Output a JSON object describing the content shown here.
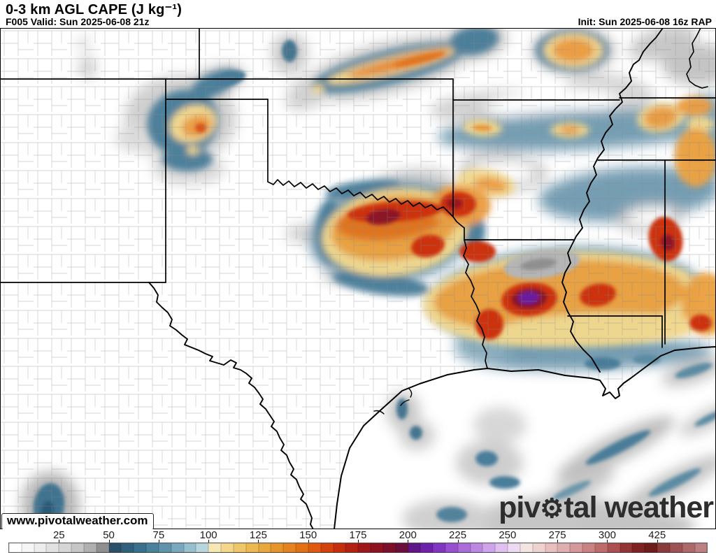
{
  "header": {
    "title": "0-3 km AGL CAPE (J kg⁻¹)",
    "valid": "F005 Valid: Sun 2025-06-08 21z",
    "init": "Init: Sun 2025-06-08 16z RAP"
  },
  "map": {
    "watermark": "www.pivotalweather.com",
    "logo_pre": "piv",
    "logo_gear": "⚙",
    "logo_post": "tal weather",
    "field": "0-3 km AGL CAPE",
    "units": "J kg⁻¹",
    "model": "RAP",
    "forecast_hour": "F005"
  },
  "colorbar": {
    "unit_label": "J kg⁻¹",
    "ticks": [
      {
        "label": "25",
        "pos": 7.143
      },
      {
        "label": "50",
        "pos": 14.286
      },
      {
        "label": "75",
        "pos": 21.429
      },
      {
        "label": "100",
        "pos": 28.571
      },
      {
        "label": "125",
        "pos": 35.714
      },
      {
        "label": "150",
        "pos": 42.857
      },
      {
        "label": "175",
        "pos": 50.0
      },
      {
        "label": "200",
        "pos": 57.143
      },
      {
        "label": "225",
        "pos": 64.286
      },
      {
        "label": "250",
        "pos": 71.429
      },
      {
        "label": "275",
        "pos": 78.571
      },
      {
        "label": "300",
        "pos": 85.714
      },
      {
        "label": "425",
        "pos": 92.857
      }
    ],
    "colors": [
      "#ffffff",
      "#f6f6f6",
      "#ededed",
      "#e2e2e2",
      "#d6d6d6",
      "#c6c6c6",
      "#b0b0b0",
      "#8f8f8f",
      "#2b5168",
      "#30607e",
      "#3b6f8e",
      "#4a819d",
      "#5f94ac",
      "#7aa9bd",
      "#97c0ce",
      "#b8d6e0",
      "#f6e8b4",
      "#f2d78d",
      "#efc76b",
      "#ecb850",
      "#e9a83d",
      "#e6952c",
      "#e58320",
      "#e37014",
      "#df590e",
      "#d4420b",
      "#c52f0d",
      "#b22112",
      "#a01717",
      "#8e1220",
      "#7c102c",
      "#6a0f3b",
      "#5d1587",
      "#6c21a9",
      "#8036c0",
      "#9750d0",
      "#ab6cda",
      "#bd88e2",
      "#cfa5ea",
      "#dfc0f0",
      "#ecd9f2",
      "#f2e4e2",
      "#eed2cf",
      "#e7c0bd",
      "#dfaeae",
      "#d59898",
      "#ca8282",
      "#bd6b6b",
      "#aa5050",
      "#943535",
      "#7e2222",
      "#6f1c1c",
      "#8a3c3c",
      "#9d5353",
      "#ae6a6a",
      "#bd8181"
    ]
  }
}
